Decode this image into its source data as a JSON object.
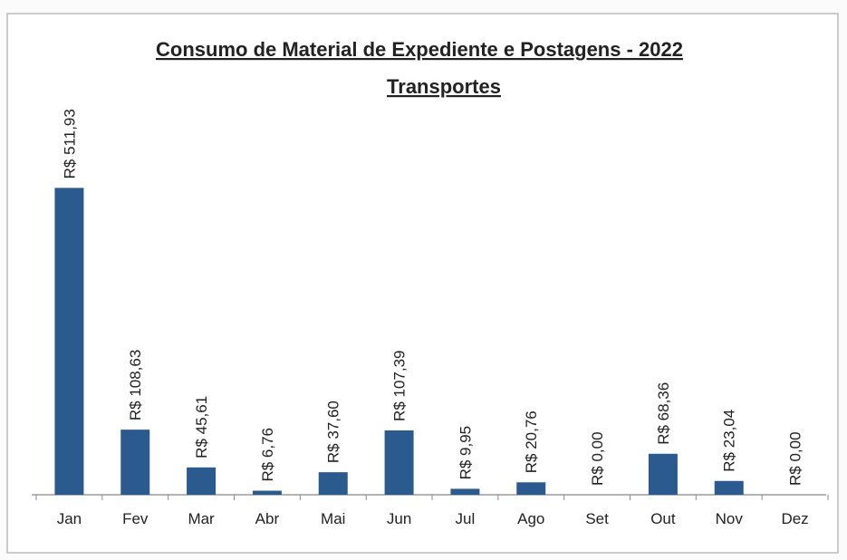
{
  "chart_data": {
    "type": "bar",
    "title": "Consumo de Material de Expediente e Postagens - 2022",
    "subtitle": "Transportes",
    "categories": [
      "Jan",
      "Fev",
      "Mar",
      "Abr",
      "Mai",
      "Jun",
      "Jul",
      "Ago",
      "Set",
      "Out",
      "Nov",
      "Dez"
    ],
    "values": [
      511.93,
      108.63,
      45.61,
      6.76,
      37.6,
      107.39,
      9.95,
      20.76,
      0,
      68.36,
      23.04,
      0
    ],
    "value_labels": [
      "R$ 511,93",
      "R$ 108,63",
      "R$ 45,61",
      "R$ 6,76",
      "R$ 37,60",
      "R$ 107,39",
      "R$ 9,95",
      "R$ 20,76",
      "R$ 0,00",
      "R$ 68,36",
      "R$ 23,04",
      "R$ 0,00"
    ],
    "color": "#2b5b8e",
    "ylim": [
      0,
      520
    ],
    "grid": false
  }
}
